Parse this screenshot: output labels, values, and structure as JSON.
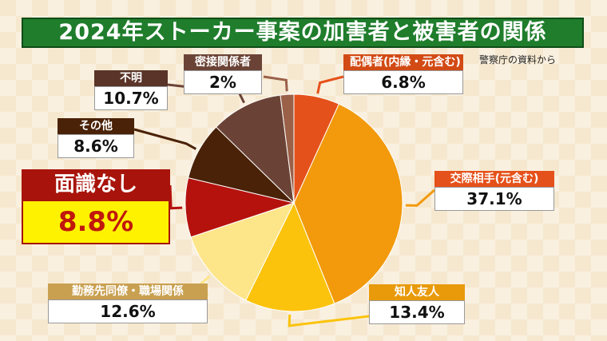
{
  "header": {
    "title": "2024年ストーカー事案の加害者と被害者の関係",
    "source": "警察庁の資料から"
  },
  "chart_data": {
    "type": "pie",
    "title": "2024年ストーカー事案の加害者と被害者の関係",
    "slices": [
      {
        "label": "配偶者(内縁・元含む)",
        "value": 6.8,
        "display": "6.8%",
        "color": "#e5511a"
      },
      {
        "label": "交際相手(元含む)",
        "value": 37.1,
        "display": "37.1%",
        "color": "#f29a0c"
      },
      {
        "label": "知人友人",
        "value": 13.4,
        "display": "13.4%",
        "color": "#fbc30c"
      },
      {
        "label": "勤務先同僚・職場関係",
        "value": 12.6,
        "display": "12.6%",
        "color": "#fde58a"
      },
      {
        "label": "面識なし",
        "value": 8.8,
        "display": "8.8%",
        "color": "#b5120e"
      },
      {
        "label": "その他",
        "value": 8.6,
        "display": "8.6%",
        "color": "#4a2207"
      },
      {
        "label": "不明",
        "value": 10.7,
        "display": "10.7%",
        "color": "#6b4336"
      },
      {
        "label": "密接関係者",
        "value": 2,
        "display": "2%",
        "color": "#9a6048"
      }
    ]
  }
}
